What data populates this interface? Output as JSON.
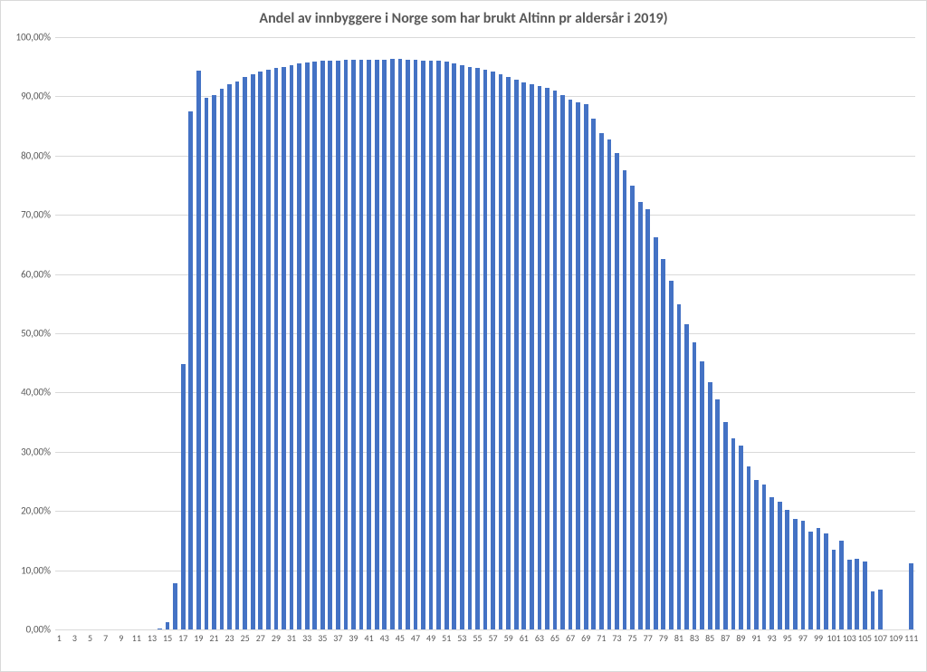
{
  "chart": {
    "type": "bar",
    "title": "Andel av innbyggere i Norge som har brukt Altinn pr aldersår i 2019)",
    "title_fontsize": 16,
    "title_color": "#595959",
    "background_color": "#ffffff",
    "border_color": "#d9d9d9",
    "grid_color": "#d9d9d9",
    "bar_color": "#4472c4",
    "label_color": "#595959",
    "label_fontsize": 11,
    "x_label_fontsize": 10,
    "ylim": [
      0,
      100
    ],
    "ytick_step": 10,
    "y_tick_labels": [
      "0,00%",
      "10,00%",
      "20,00%",
      "30,00%",
      "40,00%",
      "50,00%",
      "60,00%",
      "70,00%",
      "80,00%",
      "90,00%",
      "100,00%"
    ],
    "x_tick_labels": [
      "1",
      "3",
      "5",
      "7",
      "9",
      "11",
      "13",
      "15",
      "17",
      "19",
      "21",
      "23",
      "25",
      "27",
      "29",
      "31",
      "33",
      "35",
      "37",
      "39",
      "41",
      "43",
      "45",
      "47",
      "49",
      "51",
      "53",
      "55",
      "57",
      "59",
      "61",
      "63",
      "65",
      "67",
      "69",
      "71",
      "73",
      "75",
      "77",
      "79",
      "81",
      "83",
      "85",
      "87",
      "89",
      "91",
      "93",
      "95",
      "97",
      "99",
      "101",
      "103",
      "105",
      "107",
      "109",
      "111"
    ],
    "bar_width_ratio": 0.55,
    "data": [
      {
        "age": 1,
        "pct": 0
      },
      {
        "age": 2,
        "pct": 0
      },
      {
        "age": 3,
        "pct": 0
      },
      {
        "age": 4,
        "pct": 0
      },
      {
        "age": 5,
        "pct": 0
      },
      {
        "age": 6,
        "pct": 0
      },
      {
        "age": 7,
        "pct": 0
      },
      {
        "age": 8,
        "pct": 0
      },
      {
        "age": 9,
        "pct": 0
      },
      {
        "age": 10,
        "pct": 0
      },
      {
        "age": 11,
        "pct": 0
      },
      {
        "age": 12,
        "pct": 0
      },
      {
        "age": 13,
        "pct": 0
      },
      {
        "age": 14,
        "pct": 0.1
      },
      {
        "age": 15,
        "pct": 1.2
      },
      {
        "age": 16,
        "pct": 7.8
      },
      {
        "age": 17,
        "pct": 44.8
      },
      {
        "age": 18,
        "pct": 87.5
      },
      {
        "age": 19,
        "pct": 94.4
      },
      {
        "age": 20,
        "pct": 89.8
      },
      {
        "age": 21,
        "pct": 90.2
      },
      {
        "age": 22,
        "pct": 91.3
      },
      {
        "age": 23,
        "pct": 92.0
      },
      {
        "age": 24,
        "pct": 92.5
      },
      {
        "age": 25,
        "pct": 93.2
      },
      {
        "age": 26,
        "pct": 93.7
      },
      {
        "age": 27,
        "pct": 94.2
      },
      {
        "age": 28,
        "pct": 94.5
      },
      {
        "age": 29,
        "pct": 94.8
      },
      {
        "age": 30,
        "pct": 95.0
      },
      {
        "age": 31,
        "pct": 95.3
      },
      {
        "age": 32,
        "pct": 95.5
      },
      {
        "age": 33,
        "pct": 95.7
      },
      {
        "age": 34,
        "pct": 95.9
      },
      {
        "age": 35,
        "pct": 96.0
      },
      {
        "age": 36,
        "pct": 96.1
      },
      {
        "age": 37,
        "pct": 96.1
      },
      {
        "age": 38,
        "pct": 96.2
      },
      {
        "age": 39,
        "pct": 96.2
      },
      {
        "age": 40,
        "pct": 96.2
      },
      {
        "age": 41,
        "pct": 96.2
      },
      {
        "age": 42,
        "pct": 96.2
      },
      {
        "age": 43,
        "pct": 96.2
      },
      {
        "age": 44,
        "pct": 96.3
      },
      {
        "age": 45,
        "pct": 96.3
      },
      {
        "age": 46,
        "pct": 96.2
      },
      {
        "age": 47,
        "pct": 96.2
      },
      {
        "age": 48,
        "pct": 96.1
      },
      {
        "age": 49,
        "pct": 96.1
      },
      {
        "age": 50,
        "pct": 96.0
      },
      {
        "age": 51,
        "pct": 95.8
      },
      {
        "age": 52,
        "pct": 95.6
      },
      {
        "age": 53,
        "pct": 95.3
      },
      {
        "age": 54,
        "pct": 95.0
      },
      {
        "age": 55,
        "pct": 94.8
      },
      {
        "age": 56,
        "pct": 94.5
      },
      {
        "age": 57,
        "pct": 94.2
      },
      {
        "age": 58,
        "pct": 93.8
      },
      {
        "age": 59,
        "pct": 93.3
      },
      {
        "age": 60,
        "pct": 92.8
      },
      {
        "age": 61,
        "pct": 92.4
      },
      {
        "age": 62,
        "pct": 92.0
      },
      {
        "age": 63,
        "pct": 91.7
      },
      {
        "age": 64,
        "pct": 91.4
      },
      {
        "age": 65,
        "pct": 91.0
      },
      {
        "age": 66,
        "pct": 90.2
      },
      {
        "age": 67,
        "pct": 89.4
      },
      {
        "age": 68,
        "pct": 89.0
      },
      {
        "age": 69,
        "pct": 88.7
      },
      {
        "age": 70,
        "pct": 86.2
      },
      {
        "age": 71,
        "pct": 83.8
      },
      {
        "age": 72,
        "pct": 82.8
      },
      {
        "age": 73,
        "pct": 80.4
      },
      {
        "age": 74,
        "pct": 77.6
      },
      {
        "age": 75,
        "pct": 75.0
      },
      {
        "age": 76,
        "pct": 72.2
      },
      {
        "age": 77,
        "pct": 71.0
      },
      {
        "age": 78,
        "pct": 66.2
      },
      {
        "age": 79,
        "pct": 62.5
      },
      {
        "age": 80,
        "pct": 58.8
      },
      {
        "age": 81,
        "pct": 54.9
      },
      {
        "age": 82,
        "pct": 51.6
      },
      {
        "age": 83,
        "pct": 48.4
      },
      {
        "age": 84,
        "pct": 45.2
      },
      {
        "age": 85,
        "pct": 41.8
      },
      {
        "age": 86,
        "pct": 38.8
      },
      {
        "age": 87,
        "pct": 35.0
      },
      {
        "age": 88,
        "pct": 32.3
      },
      {
        "age": 89,
        "pct": 31.0
      },
      {
        "age": 90,
        "pct": 27.6
      },
      {
        "age": 91,
        "pct": 25.2
      },
      {
        "age": 92,
        "pct": 24.4
      },
      {
        "age": 93,
        "pct": 22.4
      },
      {
        "age": 94,
        "pct": 21.6
      },
      {
        "age": 95,
        "pct": 20.2
      },
      {
        "age": 96,
        "pct": 18.6
      },
      {
        "age": 97,
        "pct": 18.4
      },
      {
        "age": 98,
        "pct": 16.5
      },
      {
        "age": 99,
        "pct": 17.2
      },
      {
        "age": 100,
        "pct": 16.2
      },
      {
        "age": 101,
        "pct": 13.5
      },
      {
        "age": 102,
        "pct": 15.0
      },
      {
        "age": 103,
        "pct": 11.8
      },
      {
        "age": 104,
        "pct": 12.0
      },
      {
        "age": 105,
        "pct": 11.5
      },
      {
        "age": 106,
        "pct": 6.5
      },
      {
        "age": 107,
        "pct": 6.8
      },
      {
        "age": 108,
        "pct": 0
      },
      {
        "age": 109,
        "pct": 0
      },
      {
        "age": 110,
        "pct": 0
      },
      {
        "age": 111,
        "pct": 11.2
      }
    ]
  }
}
